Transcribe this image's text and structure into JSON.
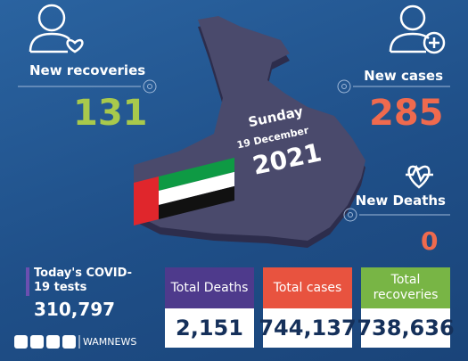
{
  "recoveries": {
    "label": "New recoveries",
    "value": "131"
  },
  "cases": {
    "label": "New cases",
    "value": "285"
  },
  "deaths": {
    "label": "New Deaths",
    "value": "0"
  },
  "date": {
    "weekday": "Sunday",
    "day": "19 December",
    "year": "2021"
  },
  "tests": {
    "label": "Today's COVID-19 tests",
    "value": "310,797"
  },
  "totals": [
    {
      "label": "Total Deaths",
      "value": "2,151"
    },
    {
      "label": "Total cases",
      "value": "744,137"
    },
    {
      "label": "Total recoveries",
      "value": "738,636"
    }
  ],
  "footer": {
    "handle": "WAMNEWS"
  }
}
